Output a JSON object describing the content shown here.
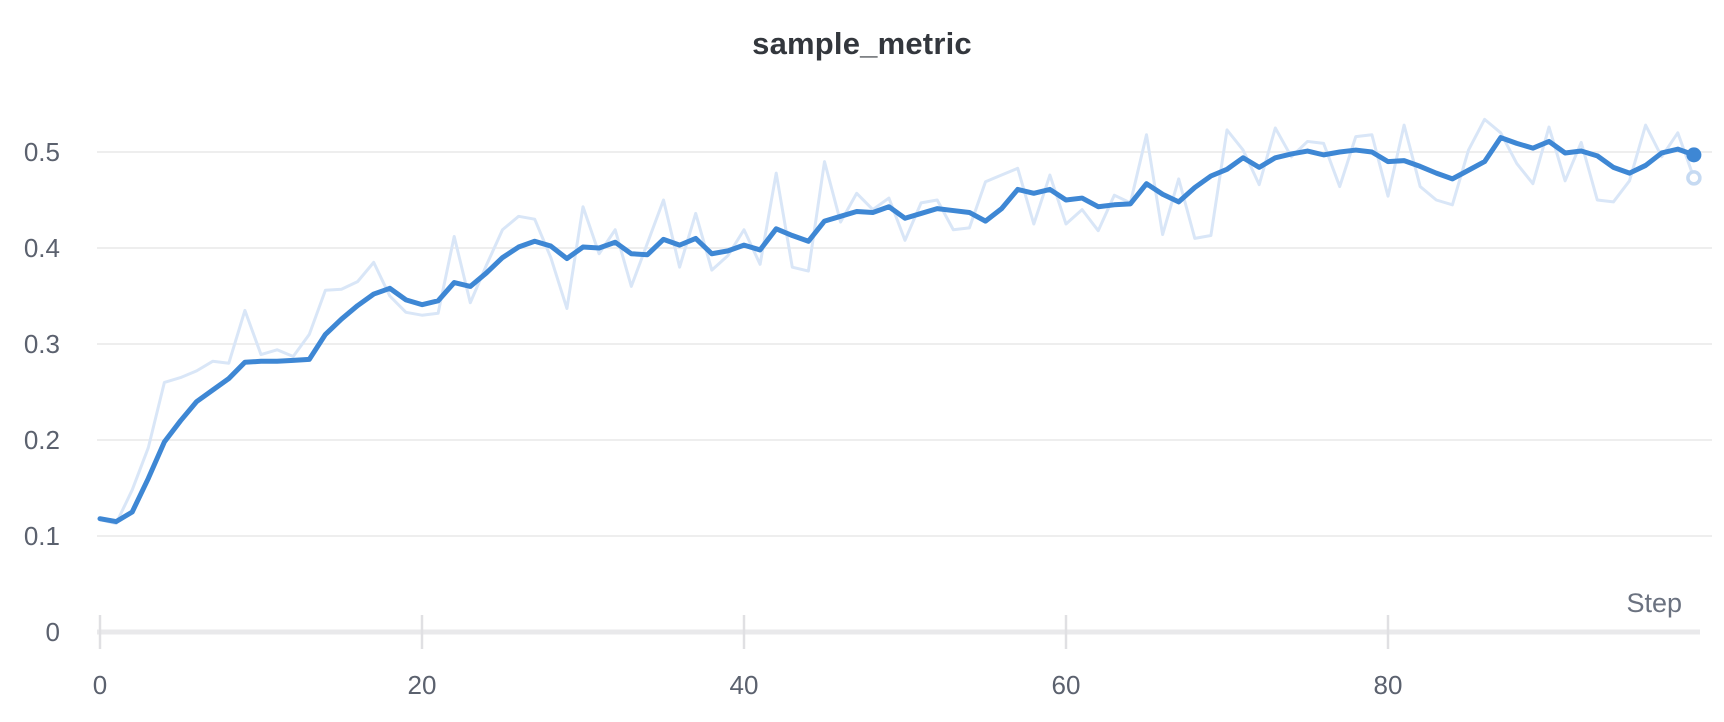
{
  "page": {
    "background": "#ffffff"
  },
  "chart_data": {
    "type": "line",
    "title": "sample_metric",
    "xlabel": "Step",
    "ylabel": "",
    "x_start": 0,
    "x_step_size": 1,
    "xlim": [
      0,
      100
    ],
    "ylim": [
      0,
      0.56
    ],
    "grid": "horizontal",
    "legend": "none",
    "xticks": {
      "values": [
        0,
        20,
        40,
        60,
        80
      ],
      "labels": [
        "0",
        "20",
        "40",
        "60",
        "80"
      ]
    },
    "yticks": {
      "values": [
        0,
        0.1,
        0.2,
        0.3,
        0.4,
        0.5
      ],
      "labels": [
        "0",
        "0.1",
        "0.2",
        "0.3",
        "0.4",
        "0.5"
      ]
    },
    "colors": {
      "smoothed_line": "#3e87d4",
      "raw_line": "#d9e6f7",
      "end_dot": "#3e87d4",
      "end_ring_stroke": "#c6daf2",
      "gridline": "#e8e8e8",
      "axis_line": "#e9e9eb",
      "tick_mark": "#e0e0e3",
      "tick_label": "#5b616e",
      "axis_label": "#6b7280",
      "title": "#33373d"
    },
    "end_markers": {
      "smoothed": "filled-dot",
      "original": "hollow-ring"
    },
    "series": [
      {
        "name": "original",
        "role": "raw",
        "values": [
          0.117,
          0.113,
          0.148,
          0.192,
          0.26,
          0.265,
          0.272,
          0.282,
          0.28,
          0.335,
          0.289,
          0.294,
          0.287,
          0.31,
          0.356,
          0.357,
          0.365,
          0.385,
          0.35,
          0.333,
          0.33,
          0.332,
          0.412,
          0.343,
          0.382,
          0.419,
          0.433,
          0.43,
          0.39,
          0.337,
          0.443,
          0.394,
          0.419,
          0.36,
          0.405,
          0.45,
          0.38,
          0.436,
          0.377,
          0.392,
          0.419,
          0.383,
          0.478,
          0.38,
          0.376,
          0.49,
          0.427,
          0.457,
          0.44,
          0.452,
          0.408,
          0.447,
          0.45,
          0.419,
          0.421,
          0.469,
          0.476,
          0.483,
          0.425,
          0.476,
          0.425,
          0.44,
          0.418,
          0.455,
          0.447,
          0.518,
          0.414,
          0.472,
          0.41,
          0.413,
          0.523,
          0.502,
          0.466,
          0.525,
          0.495,
          0.511,
          0.509,
          0.464,
          0.516,
          0.518,
          0.454,
          0.528,
          0.464,
          0.45,
          0.445,
          0.502,
          0.534,
          0.52,
          0.488,
          0.467,
          0.526,
          0.47,
          0.51,
          0.45,
          0.448,
          0.47,
          0.528,
          0.495,
          0.52,
          0.473
        ]
      },
      {
        "name": "smoothed",
        "role": "smoothed",
        "values": [
          0.118,
          0.115,
          0.125,
          0.16,
          0.198,
          0.22,
          0.24,
          0.252,
          0.264,
          0.281,
          0.282,
          0.282,
          0.283,
          0.284,
          0.31,
          0.326,
          0.34,
          0.352,
          0.358,
          0.346,
          0.341,
          0.345,
          0.364,
          0.36,
          0.374,
          0.39,
          0.401,
          0.407,
          0.402,
          0.389,
          0.401,
          0.4,
          0.406,
          0.394,
          0.393,
          0.409,
          0.403,
          0.41,
          0.394,
          0.397,
          0.403,
          0.398,
          0.42,
          0.413,
          0.407,
          0.428,
          0.433,
          0.438,
          0.437,
          0.443,
          0.431,
          0.436,
          0.441,
          0.439,
          0.437,
          0.428,
          0.441,
          0.461,
          0.457,
          0.461,
          0.45,
          0.452,
          0.443,
          0.445,
          0.446,
          0.467,
          0.456,
          0.448,
          0.463,
          0.475,
          0.482,
          0.494,
          0.484,
          0.494,
          0.498,
          0.501,
          0.497,
          0.5,
          0.502,
          0.5,
          0.49,
          0.491,
          0.485,
          0.478,
          0.472,
          0.481,
          0.49,
          0.515,
          0.509,
          0.504,
          0.511,
          0.499,
          0.501,
          0.496,
          0.484,
          0.478,
          0.486,
          0.499,
          0.503,
          0.497
        ]
      }
    ]
  }
}
